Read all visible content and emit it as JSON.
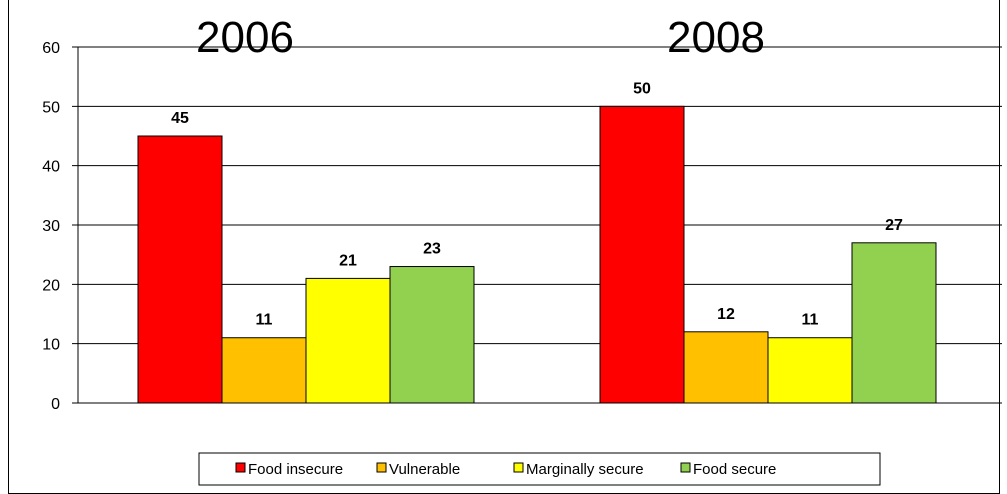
{
  "chart_data": {
    "type": "bar",
    "categories": [
      "2006",
      "2008"
    ],
    "series": [
      {
        "name": "Food insecure",
        "values": [
          45,
          50
        ],
        "labels": [
          "45",
          "50"
        ],
        "color": "#FF0000"
      },
      {
        "name": "Vulnerable",
        "values": [
          11,
          12
        ],
        "labels": [
          "11",
          "12"
        ],
        "color": "#FFC000"
      },
      {
        "name": "Marginally secure",
        "values": [
          21,
          11
        ],
        "labels": [
          "21",
          "11"
        ],
        "color": "#FFFF00"
      },
      {
        "name": "Food secure",
        "values": [
          23,
          27
        ],
        "labels": [
          "23",
          "27"
        ],
        "color": "#92D050"
      }
    ],
    "ylim": [
      0,
      60
    ],
    "yticks": [
      "0",
      "10",
      "20",
      "30",
      "40",
      "50",
      "60"
    ],
    "grid": true,
    "legend_position": "bottom"
  }
}
